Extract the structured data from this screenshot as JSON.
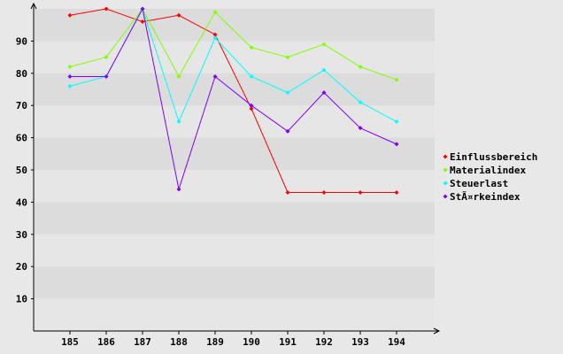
{
  "chart_data": {
    "type": "line",
    "title": "",
    "xlabel": "",
    "ylabel": "",
    "x": [
      "185",
      "186",
      "187",
      "188",
      "189",
      "190",
      "191",
      "192",
      "193",
      "194"
    ],
    "ylim": [
      0,
      100
    ],
    "yticks": [
      "10",
      "20",
      "30",
      "40",
      "50",
      "60",
      "70",
      "80",
      "90"
    ],
    "grid": "horizontal alternating bands",
    "legend_position": "right",
    "series": [
      {
        "name": "Einflussbereich",
        "color": "#ff0000",
        "values": [
          98,
          100,
          96,
          98,
          92,
          69,
          43,
          43,
          43,
          43
        ]
      },
      {
        "name": "Materialindex",
        "color": "#80ff00",
        "values": [
          82,
          85,
          100,
          79,
          99,
          88,
          85,
          89,
          82,
          78
        ]
      },
      {
        "name": "Steuerlast",
        "color": "#00ffff",
        "values": [
          76,
          79,
          100,
          65,
          91,
          79,
          74,
          81,
          71,
          65
        ]
      },
      {
        "name": "StÃ¤rkeindex",
        "color": "#8000ff",
        "values": [
          79,
          79,
          100,
          44,
          79,
          70,
          62,
          74,
          63,
          58
        ]
      }
    ]
  }
}
